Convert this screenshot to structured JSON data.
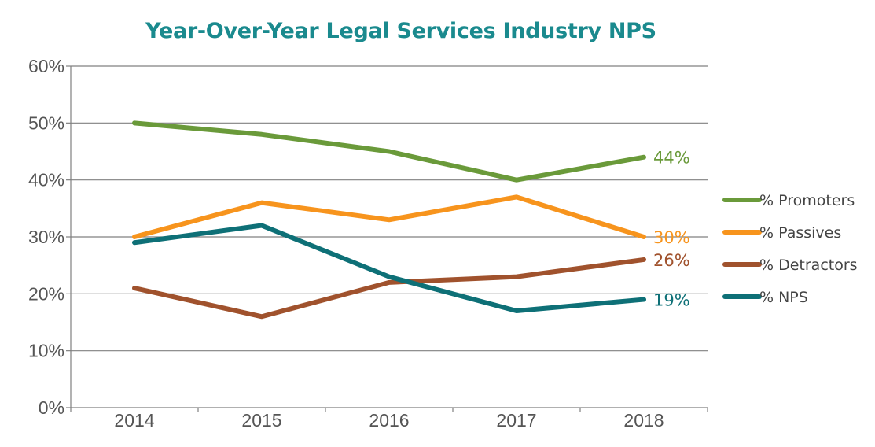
{
  "chart_data": {
    "type": "line",
    "title": "Year-Over-Year Legal Services Industry NPS",
    "xlabel": "",
    "ylabel": "",
    "categories": [
      "2014",
      "2015",
      "2016",
      "2017",
      "2018"
    ],
    "ylim": [
      0,
      60
    ],
    "yticks": [
      "0%",
      "10%",
      "20%",
      "30%",
      "40%",
      "50%",
      "60%"
    ],
    "grid": true,
    "legend_position": "right",
    "series": [
      {
        "name": "% Promoters",
        "color": "#6a9a3a",
        "values": [
          50,
          48,
          45,
          40,
          44
        ],
        "end_label": "44%"
      },
      {
        "name": "% Passives",
        "color": "#f7941d",
        "values": [
          30,
          36,
          33,
          37,
          30
        ],
        "end_label": "30%"
      },
      {
        "name": "% Detractors",
        "color": "#a0522d",
        "values": [
          21,
          16,
          22,
          23,
          26
        ],
        "end_label": "26%"
      },
      {
        "name": "% NPS",
        "color": "#0e7077",
        "values": [
          29,
          32,
          23,
          17,
          19
        ],
        "end_label": "19%"
      }
    ]
  }
}
